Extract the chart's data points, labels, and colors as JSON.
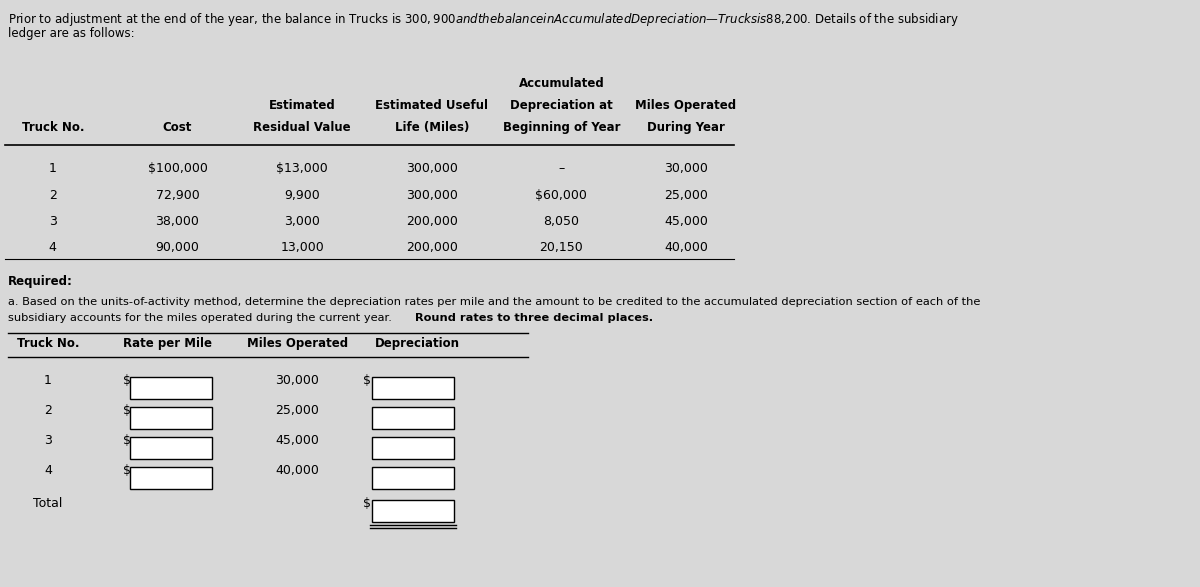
{
  "bg_color": "#d8d8d8",
  "title_line1": "Prior to adjustment at the end of the year, the balance in Trucks is $300,900 and the balance in Accumulated Depreciation—Trucks is $88,200. Details of the subsidiary",
  "title_line2": "ledger are as follows:",
  "header_accum": "Accumulated",
  "header_row2": [
    "Estimated",
    "Estimated Useful",
    "Depreciation at",
    "Miles Operated"
  ],
  "header_row3": [
    "Truck No.",
    "Cost",
    "Residual Value",
    "Life (Miles)",
    "Beginning of Year",
    "During Year"
  ],
  "data_rows": [
    [
      "1",
      "$100,000",
      "$13,000",
      "300,000",
      "–",
      "30,000"
    ],
    [
      "2",
      "72,900",
      "9,900",
      "300,000",
      "$60,000",
      "25,000"
    ],
    [
      "3",
      "38,000",
      "3,000",
      "200,000",
      "8,050",
      "45,000"
    ],
    [
      "4",
      "90,000",
      "13,000",
      "200,000",
      "20,150",
      "40,000"
    ]
  ],
  "required_label": "Required:",
  "part_a_line1": "a. Based on the units-of-activity method, determine the depreciation rates per mile and the amount to be credited to the accumulated depreciation section of each of the",
  "part_a_line2_normal": "subsidiary accounts for the miles operated during the current year. ",
  "part_a_line2_bold": "Round rates to three decimal places.",
  "table2_headers": [
    "Truck No.",
    "Rate per Mile",
    "Miles Operated",
    "Depreciation"
  ],
  "input_truck_nums": [
    "1",
    "2",
    "3",
    "4"
  ],
  "miles_vals": [
    "30,000",
    "25,000",
    "45,000",
    "40,000"
  ],
  "total_label": "Total"
}
